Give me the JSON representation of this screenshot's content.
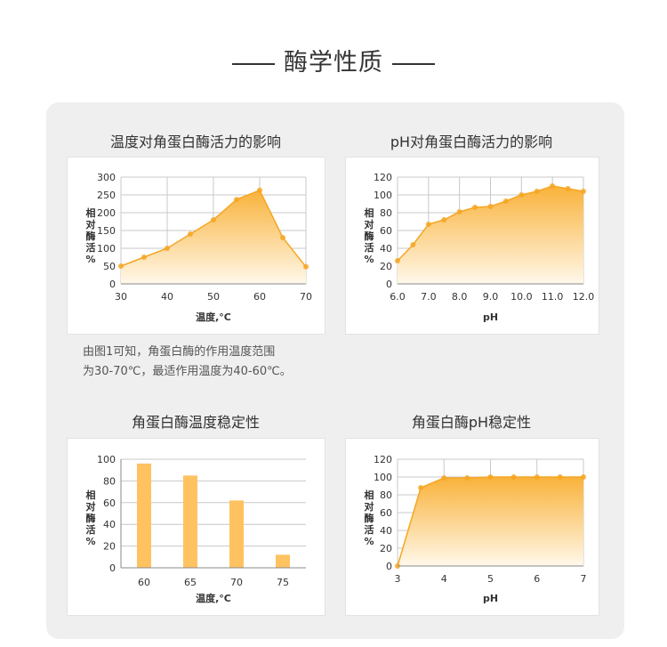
{
  "heading": "酶学性质",
  "note": [
    "由图1可知，角蛋白酶的作用温度范围",
    "为30-70℃，最适作用温度为40-60℃。"
  ],
  "colors": {
    "line": "#f5a623",
    "fill_top": "#f9b23a",
    "fill_bottom": "#fff8ea",
    "bar": "#ffc261",
    "grid": "#c8c8c8",
    "panel": "#efefef"
  },
  "chart_data": [
    {
      "type": "area",
      "title": "温度对角蛋白酶活力的影响",
      "xlabel": "温度,°C",
      "ylabel": "相对酶活%",
      "x": [
        30,
        35,
        40,
        45,
        50,
        55,
        60,
        65,
        70
      ],
      "y": [
        50,
        75,
        100,
        140,
        180,
        237,
        263,
        130,
        48
      ],
      "xlim": [
        30,
        70
      ],
      "ylim": [
        0,
        300
      ],
      "xticks": [
        "30",
        "40",
        "50",
        "60",
        "70"
      ],
      "xtick_values": [
        30,
        40,
        50,
        60,
        70
      ],
      "yticks": [
        "0",
        "50",
        "100",
        "150",
        "200",
        "250",
        "300"
      ],
      "grid": true
    },
    {
      "type": "area",
      "title": "pH对角蛋白酶活力的影响",
      "xlabel": "pH",
      "ylabel": "相对酶活%",
      "x": [
        6.0,
        6.5,
        7.0,
        7.5,
        8.0,
        8.5,
        9.0,
        9.5,
        10.0,
        10.5,
        11.0,
        11.5,
        12.0
      ],
      "y": [
        26,
        44,
        67,
        72,
        81,
        86,
        87,
        93,
        100,
        104,
        110,
        107,
        104
      ],
      "xlim": [
        6,
        12
      ],
      "ylim": [
        0,
        120
      ],
      "xticks": [
        "6.0",
        "7.0",
        "8.0",
        "9.0",
        "10.0",
        "11.0",
        "12.0"
      ],
      "xtick_values": [
        6,
        7,
        8,
        9,
        10,
        11,
        12
      ],
      "yticks": [
        "0",
        "20",
        "40",
        "60",
        "80",
        "100",
        "120"
      ],
      "grid": true
    },
    {
      "type": "bar",
      "title": "角蛋白酶温度稳定性",
      "xlabel": "温度,°C",
      "ylabel": "相对酶活%",
      "categories": [
        "60",
        "65",
        "70",
        "75"
      ],
      "values": [
        96,
        85,
        62,
        12
      ],
      "ylim": [
        0,
        100
      ],
      "yticks": [
        "0",
        "20",
        "40",
        "60",
        "80",
        "100"
      ],
      "grid": true
    },
    {
      "type": "area",
      "title": "角蛋白酶pH稳定性",
      "xlabel": "pH",
      "ylabel": "相对酶活%",
      "x": [
        3,
        3.5,
        4,
        4.5,
        5,
        5.5,
        6,
        6.5,
        7
      ],
      "y": [
        0,
        88,
        99,
        99,
        100,
        100,
        100,
        100,
        100
      ],
      "xlim": [
        3,
        7
      ],
      "ylim": [
        0,
        120
      ],
      "xticks": [
        "3",
        "4",
        "5",
        "6",
        "7"
      ],
      "xtick_values": [
        3,
        4,
        5,
        6,
        7
      ],
      "yticks": [
        "0",
        "20",
        "40",
        "60",
        "80",
        "100",
        "120"
      ],
      "grid": true
    }
  ]
}
